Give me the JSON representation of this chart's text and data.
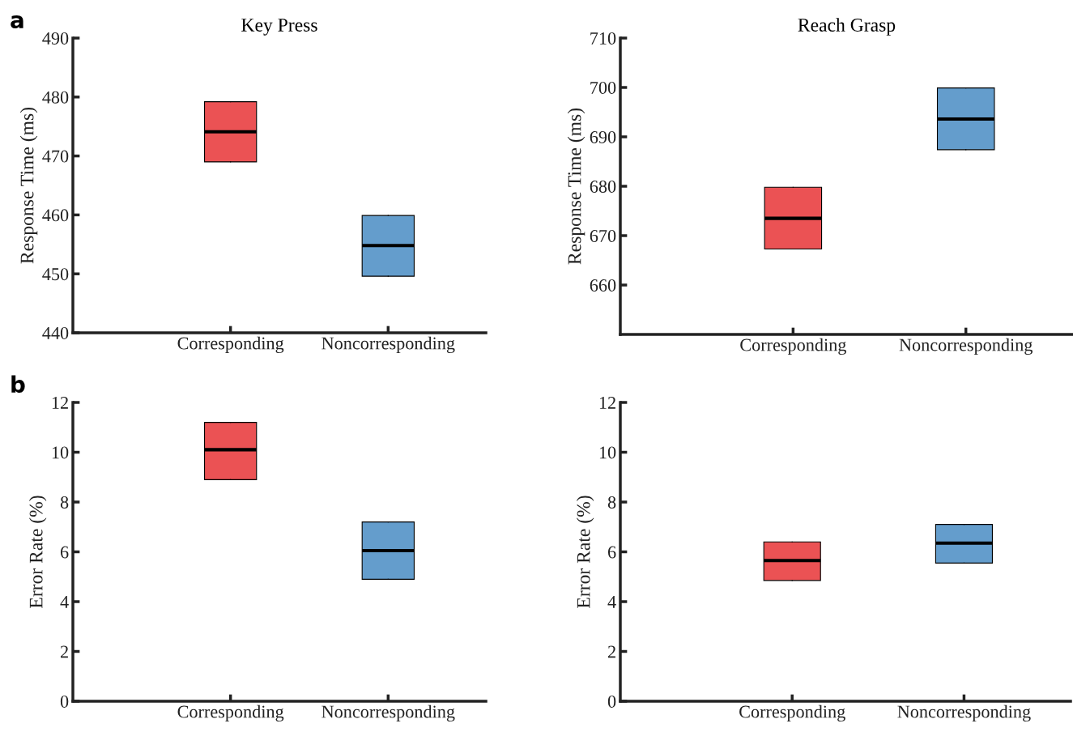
{
  "chart_data": [
    {
      "type": "box",
      "title": "Key Press",
      "ylabel": "Response Time (ms)",
      "categories": [
        "Corresponding",
        "Noncorresponding"
      ],
      "colors": [
        "#eb5254",
        "#649dcc"
      ],
      "boxes": [
        {
          "low": 469,
          "q1": 469,
          "median": 474.1,
          "q3": 479.2,
          "high": 479.2
        },
        {
          "low": 449.6,
          "q1": 449.6,
          "median": 454.8,
          "q3": 459.9,
          "high": 459.9
        }
      ],
      "ylim": [
        440,
        490
      ],
      "yticks": [
        440,
        450,
        460,
        470,
        480,
        490
      ],
      "annotations": [
        "a"
      ]
    },
    {
      "type": "box",
      "title": "Reach Grasp",
      "ylabel": "Response Time (ms)",
      "categories": [
        "Corresponding",
        "Noncorresponding"
      ],
      "colors": [
        "#eb5254",
        "#649dcc"
      ],
      "boxes": [
        {
          "low": 667.3,
          "q1": 667.3,
          "median": 673.5,
          "q3": 679.8,
          "high": 679.8
        },
        {
          "low": 687.4,
          "q1": 687.4,
          "median": 693.6,
          "q3": 699.9,
          "high": 699.9
        }
      ],
      "ylim": [
        650,
        710
      ],
      "yticks": [
        660,
        670,
        680,
        690,
        700,
        710
      ]
    },
    {
      "type": "box",
      "ylabel": "Error Rate (%)",
      "categories": [
        "Corresponding",
        "Noncorresponding"
      ],
      "colors": [
        "#eb5254",
        "#649dcc"
      ],
      "boxes": [
        {
          "low": 8.9,
          "q1": 8.9,
          "median": 10.1,
          "q3": 11.2,
          "high": 11.2
        },
        {
          "low": 4.9,
          "q1": 4.9,
          "median": 6.05,
          "q3": 7.2,
          "high": 7.2
        }
      ],
      "ylim": [
        0,
        12
      ],
      "yticks": [
        0,
        2,
        4,
        6,
        8,
        10,
        12
      ],
      "annotations": [
        "b"
      ]
    },
    {
      "type": "box",
      "ylabel": "Error Rate (%)",
      "categories": [
        "Corresponding",
        "Noncorresponding"
      ],
      "colors": [
        "#eb5254",
        "#649dcc"
      ],
      "boxes": [
        {
          "low": 4.85,
          "q1": 4.85,
          "median": 5.65,
          "q3": 6.4,
          "high": 6.4
        },
        {
          "low": 5.55,
          "q1": 5.55,
          "median": 6.35,
          "q3": 7.1,
          "high": 7.1
        }
      ],
      "ylim": [
        0,
        12
      ],
      "yticks": [
        0,
        2,
        4,
        6,
        8,
        10,
        12
      ]
    }
  ]
}
